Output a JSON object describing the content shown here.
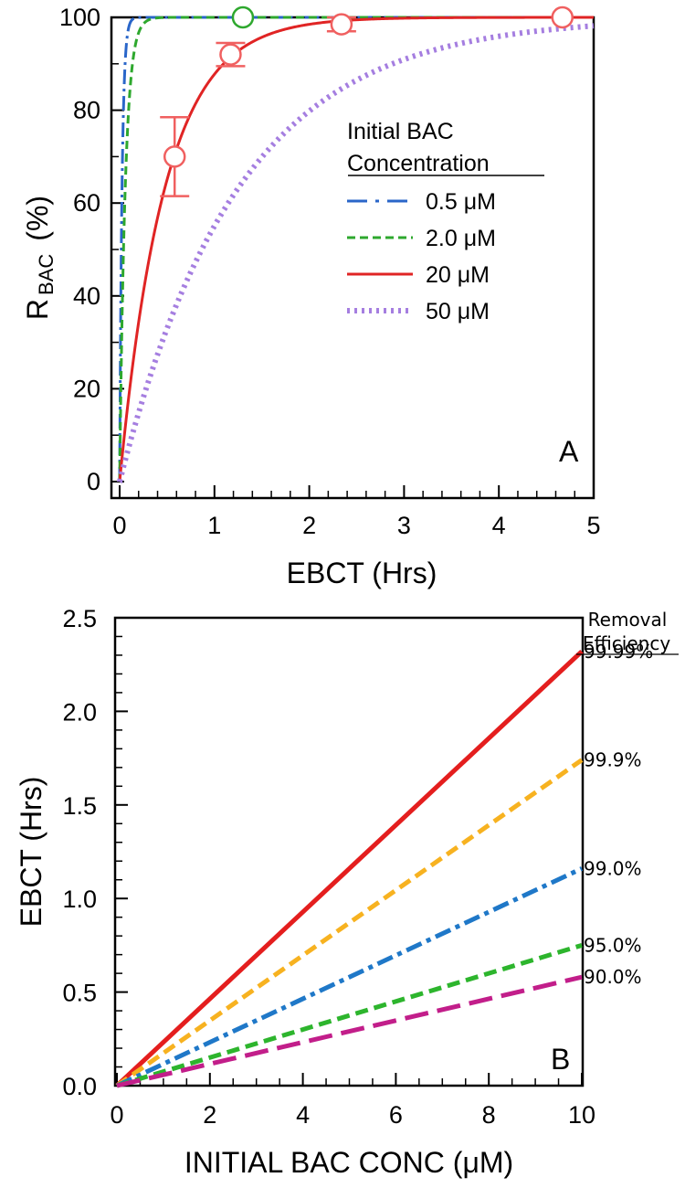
{
  "chart_data": [
    {
      "panel": "A",
      "type": "line",
      "panel_label": "A",
      "xlabel": "EBCT (Hrs)",
      "ylabel_main": "R",
      "ylabel_sub": "BAC",
      "ylabel_unit": "(%)",
      "xlim": [
        0,
        5
      ],
      "ylim": [
        0,
        100
      ],
      "xticks": [
        0,
        1,
        2,
        3,
        4,
        5
      ],
      "yticks": [
        0,
        20,
        40,
        60,
        80,
        100
      ],
      "legend_title_line1": "Initial BAC",
      "legend_title_line2": "Concentration",
      "legend_position": "center-right",
      "series": [
        {
          "name": "0.5 μM",
          "label": "0.5 μM",
          "model": "exponential",
          "rate_per_hr": 40,
          "color": "#2a66c9",
          "style": "dash-dot"
        },
        {
          "name": "2.0 μM",
          "label": "2.0 μM",
          "model": "exponential",
          "rate_per_hr": 17,
          "color": "#2ea82e",
          "style": "dashed"
        },
        {
          "name": "20 μM",
          "label": "20 μM",
          "model": "exponential",
          "rate_per_hr": 2.1,
          "color": "#e02424",
          "style": "solid"
        },
        {
          "name": "50 μM",
          "label": "50 μM",
          "model": "exponential",
          "rate_per_hr": 0.8,
          "color": "#a57ee0",
          "style": "dotted"
        }
      ],
      "points": [
        {
          "series": "20 μM",
          "x": 0.58,
          "y": 70,
          "err": 8.5,
          "color": "#f06060"
        },
        {
          "series": "20 μM",
          "x": 1.17,
          "y": 92,
          "err": 2.5,
          "color": "#f06060"
        },
        {
          "series": "20 μM",
          "x": 2.34,
          "y": 98.5,
          "err": 1.5,
          "color": "#f06060"
        },
        {
          "series": "20 μM",
          "x": 4.67,
          "y": 100,
          "err": 0,
          "color": "#f06060"
        },
        {
          "series": "2.0 μM",
          "x": 1.3,
          "y": 100,
          "err": 0,
          "color": "#2ea82e"
        }
      ]
    },
    {
      "panel": "B",
      "type": "line",
      "panel_label": "B",
      "xlabel": "INITIAL BAC CONC (μM)",
      "ylabel": "EBCT (Hrs)",
      "xlim": [
        0,
        10
      ],
      "ylim": [
        0,
        2.5
      ],
      "xticks": [
        0,
        2,
        4,
        6,
        8,
        10
      ],
      "yticks": [
        0.0,
        0.5,
        1.0,
        1.5,
        2.0,
        2.5
      ],
      "ytick_labels": [
        "0.0",
        "0.5",
        "1.0",
        "1.5",
        "2.0",
        "2.5"
      ],
      "legend_title_line1": "Removal",
      "legend_title_line2": "Efficiency",
      "series": [
        {
          "name": "99.99%",
          "label": "99.99%",
          "x": [
            0,
            10
          ],
          "y": [
            0,
            2.32
          ],
          "color": "#e41e1e",
          "style": "solid"
        },
        {
          "name": "99.9%",
          "label": "99.9%",
          "x": [
            0,
            10
          ],
          "y": [
            0,
            1.74
          ],
          "color": "#f7b220",
          "style": "dashed"
        },
        {
          "name": "99.0%",
          "label": "99.0%",
          "x": [
            0,
            10
          ],
          "y": [
            0,
            1.16
          ],
          "color": "#1f78c8",
          "style": "dash-dot"
        },
        {
          "name": "95.0%",
          "label": "95.0%",
          "x": [
            0,
            10
          ],
          "y": [
            0,
            0.75
          ],
          "color": "#2db52d",
          "style": "dashed"
        },
        {
          "name": "90.0%",
          "label": "90.0%",
          "x": [
            0,
            10
          ],
          "y": [
            0,
            0.58
          ],
          "color": "#c21e8a",
          "style": "long-dash"
        }
      ]
    }
  ]
}
